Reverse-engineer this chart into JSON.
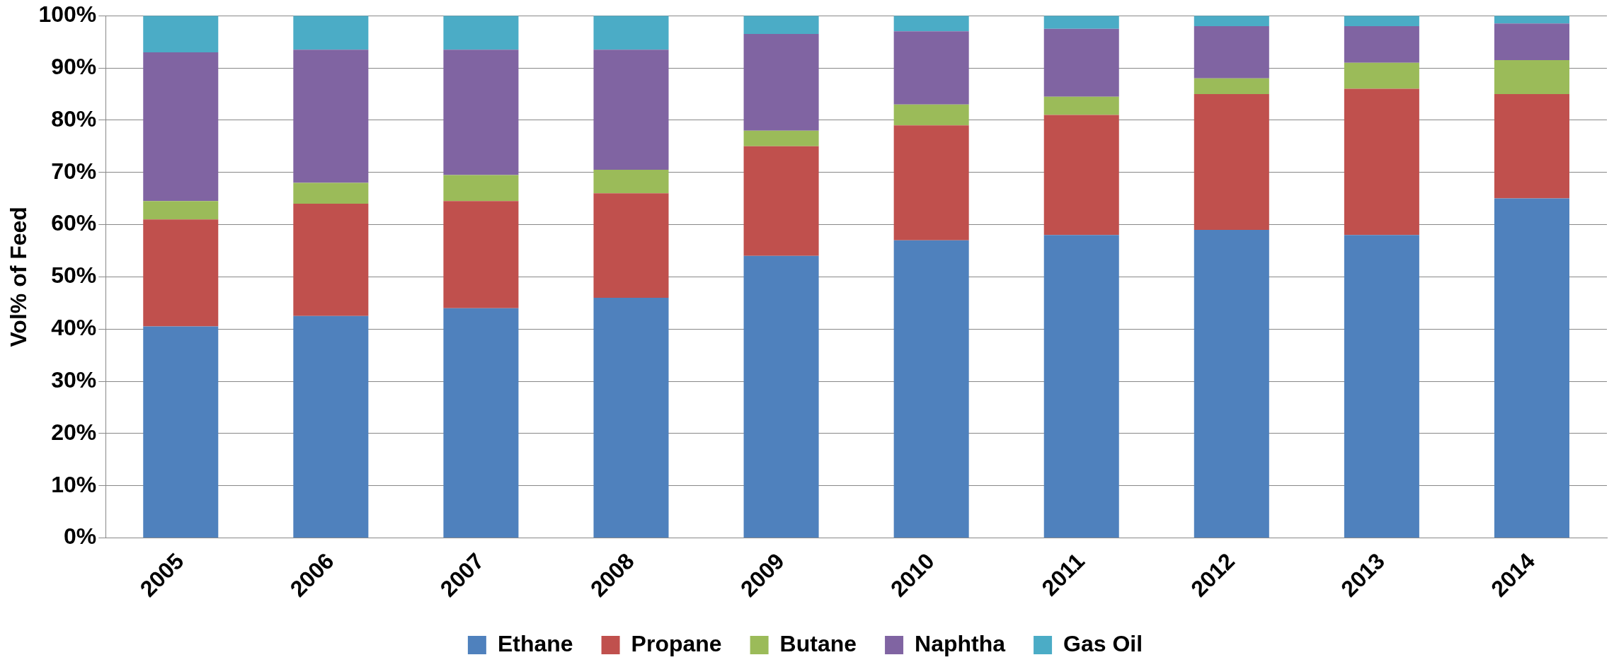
{
  "chart_data": {
    "type": "bar",
    "stacked": true,
    "ylabel": "Vol% of Feed",
    "categories": [
      "2005",
      "2006",
      "2007",
      "2008",
      "2009",
      "2010",
      "2011",
      "2012",
      "2013",
      "2014"
    ],
    "series": [
      {
        "name": "Ethane",
        "color": "#4f81bd",
        "values": [
          40.5,
          42.5,
          44,
          46,
          54,
          57,
          58,
          59,
          58,
          65
        ]
      },
      {
        "name": "Propane",
        "color": "#c0504d",
        "values": [
          20.5,
          21.5,
          20.5,
          20,
          21,
          22,
          23,
          26,
          28,
          20
        ]
      },
      {
        "name": "Butane",
        "color": "#9bbb59",
        "values": [
          3.5,
          4,
          5,
          4.5,
          3,
          4,
          3.5,
          3,
          5,
          6.5
        ]
      },
      {
        "name": "Naphtha",
        "color": "#8064a2",
        "values": [
          28.5,
          25.5,
          24,
          23,
          18.5,
          14,
          13,
          10,
          7,
          7
        ]
      },
      {
        "name": "Gas Oil",
        "color": "#4bacc6",
        "values": [
          7,
          6.5,
          6.5,
          6.5,
          3.5,
          3,
          2.5,
          2,
          2,
          1.5
        ]
      }
    ],
    "ylim": [
      0,
      100
    ],
    "yticks": [
      {
        "value": 0,
        "label": "0%"
      },
      {
        "value": 10,
        "label": "10%"
      },
      {
        "value": 20,
        "label": "20%"
      },
      {
        "value": 30,
        "label": "30%"
      },
      {
        "value": 40,
        "label": "40%"
      },
      {
        "value": 50,
        "label": "50%"
      },
      {
        "value": 60,
        "label": "60%"
      },
      {
        "value": 70,
        "label": "70%"
      },
      {
        "value": 80,
        "label": "80%"
      },
      {
        "value": 90,
        "label": "90%"
      },
      {
        "value": 100,
        "label": "100%"
      }
    ],
    "grid": "y",
    "legend": "bottom"
  }
}
